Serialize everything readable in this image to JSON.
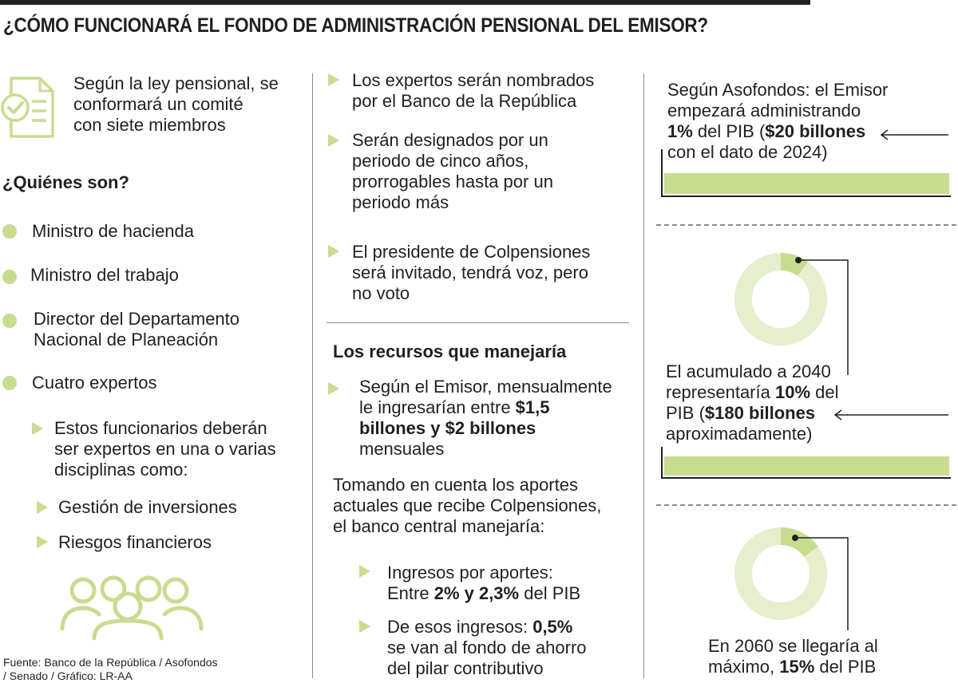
{
  "title": "¿CÓMO FUNCIONARÁ EL FONDO DE ADMINISTRACIÓN PENSIONAL DEL EMISOR?",
  "left": {
    "intro": [
      "Según la ley pensional, se",
      "conformará un comité",
      "con siete miembros"
    ],
    "who_heading": "¿Quiénes son?",
    "members": [
      [
        "Ministro de hacienda"
      ],
      [
        "Ministro del trabajo"
      ],
      [
        "Director del Departamento",
        "Nacional de Planeación"
      ],
      [
        "Cuatro expertos"
      ]
    ],
    "experts_note": [
      "Estos funcionarios deberán",
      "ser expertos en una o varias",
      "disciplinas como:"
    ],
    "disciplines": [
      "Gestión de inversiones",
      "Riesgos financieros"
    ],
    "source": [
      "Fuente: Banco de la República / Asofondos",
      "/ Senado / Gráfico: LR-AA"
    ]
  },
  "middle": {
    "bullets": [
      [
        "Los expertos serán nombrados",
        "por el Banco de la República"
      ],
      [
        "Serán designados por un",
        "periodo de cinco años,",
        "prorrogables hasta por un",
        "periodo más"
      ],
      [
        "El presidente de Colpensiones",
        "será invitado, tendrá voz, pero",
        "no voto"
      ]
    ],
    "resources_heading": "Los recursos que manejaría",
    "monthly": {
      "line1": "Según el Emisor, mensualmente",
      "line2_pre": "le ingresarían entre ",
      "line2_bold": "$1,5",
      "line3_bold": "billones y $2 billones",
      "line4": "mensuales"
    },
    "intro2": [
      "Tomando en cuenta los aportes",
      "actuales que recibe Colpensiones,",
      "el banco central manejaría:"
    ],
    "income": {
      "line1": "Ingresos por aportes:",
      "line2_pre": "Entre ",
      "line2_bold": "2% y 2,3%",
      "line2_post": " del PIB"
    },
    "savings": {
      "line1_pre": "De esos ingresos: ",
      "line1_bold": "0,5%",
      "line2": "se van al fondo de ahorro",
      "line3": "del pilar contributivo"
    }
  },
  "right": {
    "panel1": {
      "line1": "Según Asofondos: el Emisor",
      "line2": "empezará administrando",
      "line3_bold1": "1%",
      "line3_mid": " del PIB (",
      "line3_bold2": "$20 billones",
      "line4": "con el dato de 2024)"
    },
    "panel2": {
      "line1": "El acumulado a 2040",
      "line2_pre": "representaría ",
      "line2_bold": "10%",
      "line2_post": " del",
      "line3_pre": "PIB (",
      "line3_bold": "$180 billones",
      "line4": "aproximadamente)"
    },
    "panel3": {
      "line1": "En 2060 se llegaría al",
      "line2_pre": "máximo, ",
      "line2_bold": "15%",
      "line2_post": " del PIB"
    },
    "donut_2040_pct": 10,
    "donut_2060_pct": 15
  },
  "colors": {
    "accent_green": "#c8dc90",
    "light_green": "#e6efcd",
    "text": "#231f20",
    "rule": "#8a8a8a"
  },
  "icons": [
    "checklist-icon",
    "people-group-icon",
    "arrow-left-icon",
    "triangle-bullet-icon",
    "dot-bullet-icon"
  ]
}
